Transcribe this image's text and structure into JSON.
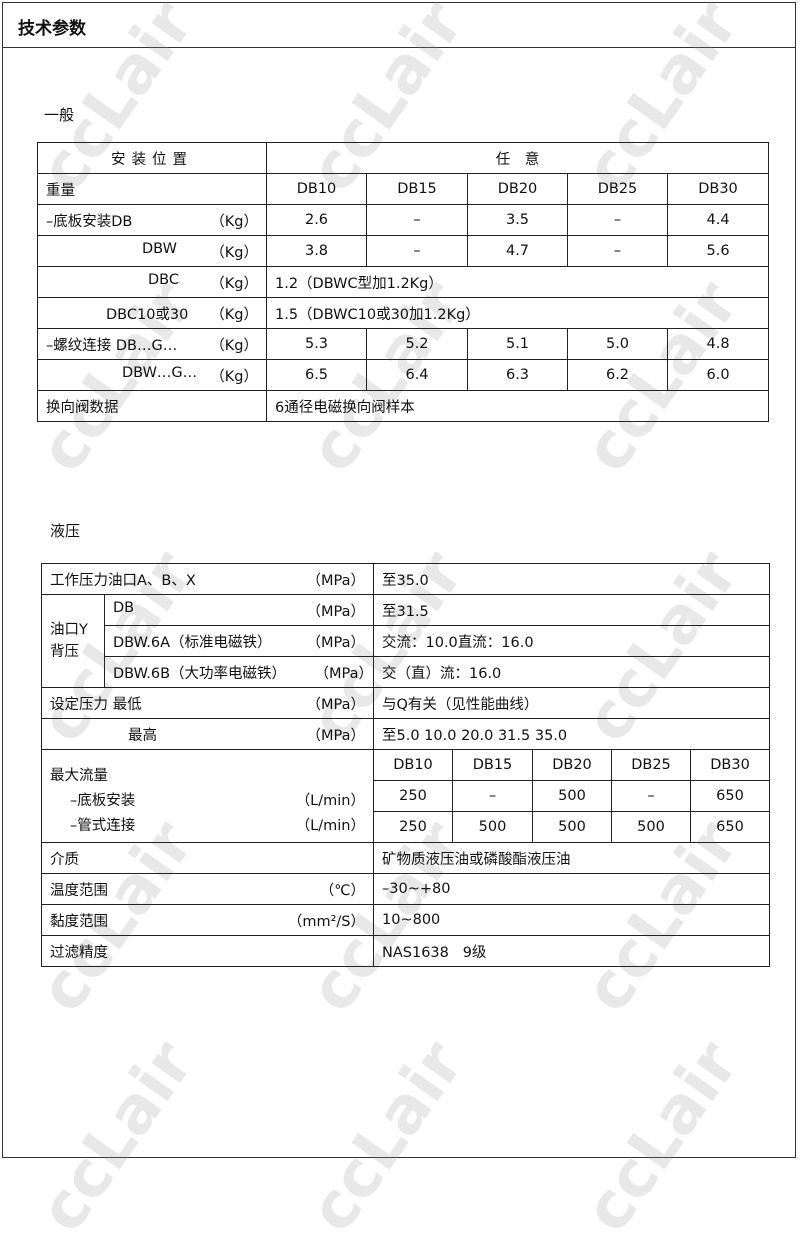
{
  "header": {
    "title": "技术参数"
  },
  "watermark": "ccLair",
  "general": {
    "section_label": "一般",
    "mount_label": "安装位置",
    "mount_value": "任　意",
    "weight_label": "重量",
    "sizes": [
      "DB10",
      "DB15",
      "DB20",
      "DB25",
      "DB30"
    ],
    "unit_kg": "（Kg）",
    "rows": [
      {
        "label": "–底板安装DB",
        "values": [
          "2.6",
          "–",
          "3.5",
          "–",
          "4.4"
        ]
      },
      {
        "label": "DBW",
        "values": [
          "3.8",
          "–",
          "4.7",
          "–",
          "5.6"
        ]
      },
      {
        "label": "DBC",
        "span": "1.2（DBWC型加1.2Kg）"
      },
      {
        "label": "DBC10或30",
        "span": "1.5（DBWC10或30加1.2Kg）"
      },
      {
        "label": "–螺纹连接  DB…G…",
        "values": [
          "5.3",
          "5.2",
          "5.1",
          "5.0",
          "4.8"
        ]
      },
      {
        "label": "DBW…G…",
        "values": [
          "6.5",
          "6.4",
          "6.3",
          "6.2",
          "6.0"
        ]
      }
    ],
    "valve_label": "换向阀数据",
    "valve_value": "6通径电磁换向阀样本"
  },
  "hydraulic": {
    "section_label": "液压",
    "unit_mpa": "（MPa）",
    "working_label": "工作压力油口A、B、X",
    "working_value": "至35.0",
    "backpressure_label": "油口Y背压",
    "bp_rows": [
      {
        "label": "DB",
        "value": "至31.5"
      },
      {
        "label": "DBW.6A（标准电磁铁）",
        "value": "交流：10.0直流：16.0"
      },
      {
        "label": "DBW.6B（大功率电磁铁）",
        "value": "交（直）流：16.0"
      }
    ],
    "set_min_label": "设定压力  最低",
    "set_min_value": "与Q有关（见性能曲线）",
    "set_max_label": "最高",
    "set_max_value": "至5.0  10.0  20.0  31.5  35.0",
    "flow_label": "最大流量",
    "flow_unit": "（L/min）",
    "sizes": [
      "DB10",
      "DB15",
      "DB20",
      "DB25",
      "DB30"
    ],
    "flow_rows": [
      {
        "label": "–底板安装",
        "values": [
          "250",
          "–",
          "500",
          "–",
          "650"
        ]
      },
      {
        "label": "–管式连接",
        "values": [
          "250",
          "500",
          "500",
          "500",
          "650"
        ]
      }
    ],
    "medium_label": "介质",
    "medium_value": "矿物质液压油或磷酸酯液压油",
    "temp_label": "温度范围",
    "temp_unit": "（℃）",
    "temp_value": "–30~+80",
    "visc_label": "黏度范围",
    "visc_unit": "（mm²/S）",
    "visc_value": "10~800",
    "filter_label": "过滤精度",
    "filter_value": "NAS1638   9级"
  }
}
